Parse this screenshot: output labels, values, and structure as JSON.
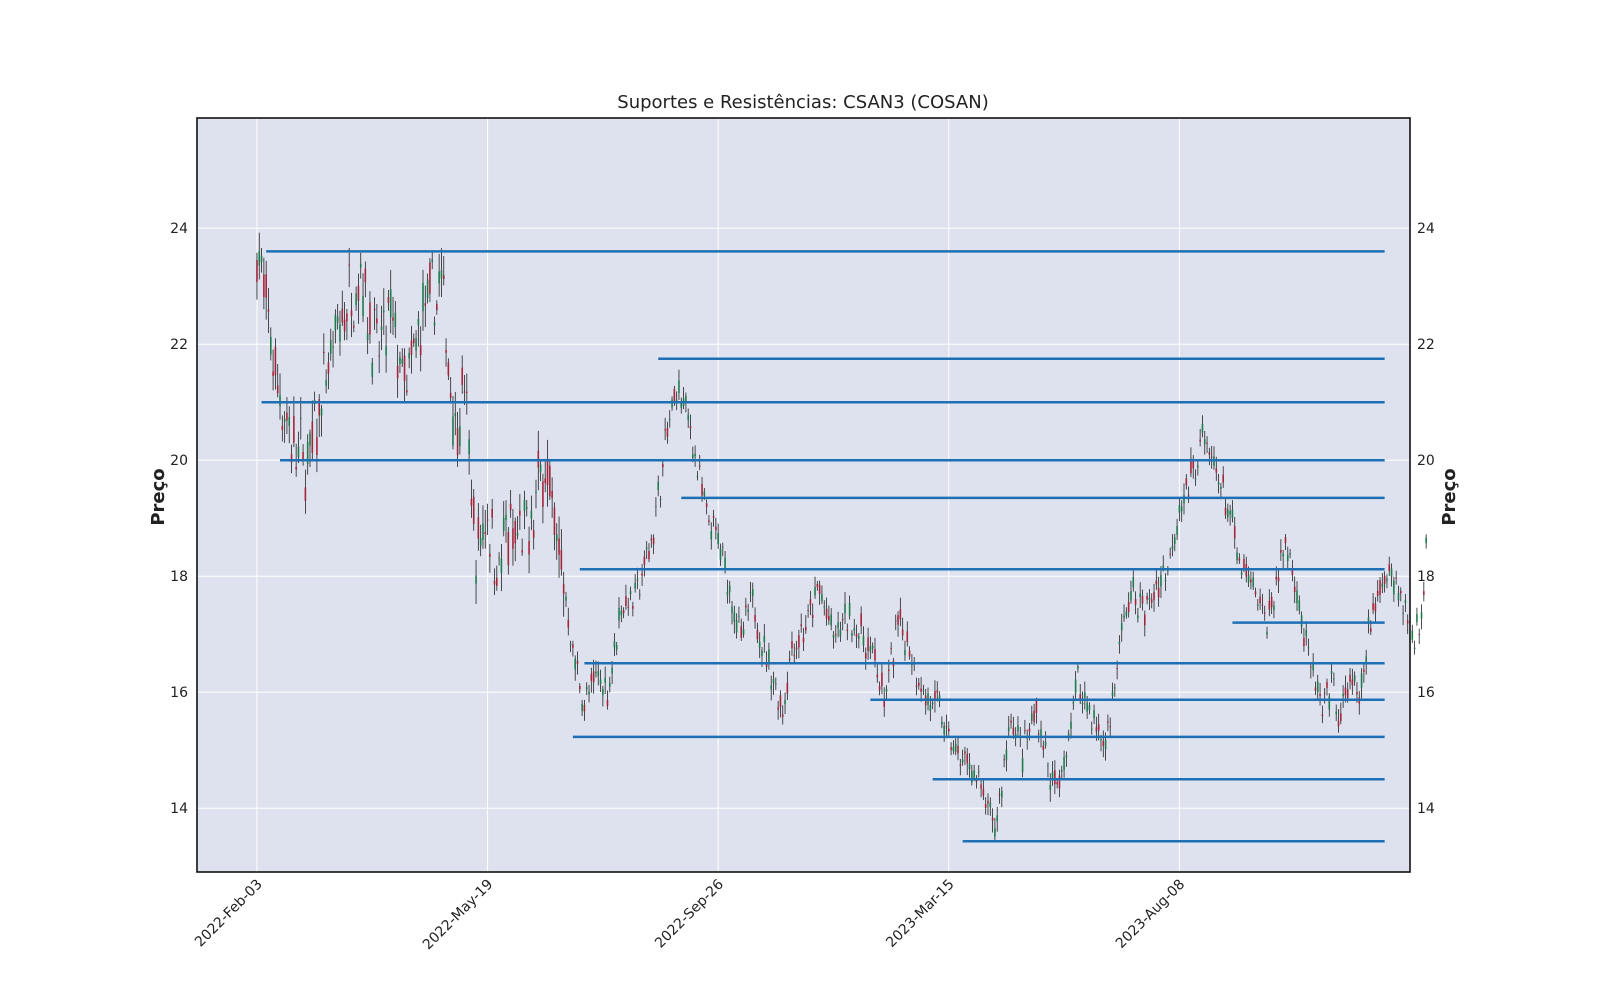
{
  "chart_data": {
    "type": "candlestick",
    "title": "Suportes e Resistências: CSAN3 (COSAN)",
    "ylabel_left": "Preço",
    "ylabel_right": "Preço",
    "x_tick_labels": [
      "2022-Feb-03",
      "2022-May-19",
      "2022-Sep-26",
      "2023-Mar-15",
      "2023-Aug-08"
    ],
    "y_ticks": [
      14,
      16,
      18,
      20,
      22,
      24
    ],
    "ylim": [
      12.9,
      25.9
    ],
    "grid": true,
    "colors": {
      "plot_background": "#dde2ee",
      "grid": "#ffffff",
      "level_line": "#1f6fb4",
      "candle_up": "#1f7a4c",
      "candle_down": "#a3253a",
      "wick": "#222222"
    },
    "price_path": [
      [
        0,
        23.7
      ],
      [
        8,
        21.5
      ],
      [
        15,
        20.3
      ],
      [
        22,
        19.9
      ],
      [
        30,
        21.4
      ],
      [
        38,
        22.6
      ],
      [
        45,
        23.3
      ],
      [
        52,
        21.8
      ],
      [
        58,
        22.4
      ],
      [
        65,
        21.2
      ],
      [
        72,
        22.5
      ],
      [
        80,
        23.0
      ],
      [
        86,
        20.6
      ],
      [
        90,
        21.2
      ],
      [
        95,
        18.3
      ],
      [
        100,
        19.1
      ],
      [
        105,
        18.1
      ],
      [
        108,
        18.7
      ],
      [
        112,
        18.6
      ],
      [
        118,
        18.7
      ],
      [
        125,
        20.1
      ],
      [
        128,
        19.0
      ],
      [
        132,
        18.2
      ],
      [
        137,
        16.7
      ],
      [
        142,
        15.8
      ],
      [
        148,
        16.3
      ],
      [
        152,
        16.0
      ],
      [
        158,
        17.5
      ],
      [
        165,
        17.7
      ],
      [
        172,
        18.8
      ],
      [
        178,
        20.5
      ],
      [
        182,
        21.2
      ],
      [
        186,
        20.9
      ],
      [
        190,
        20.1
      ],
      [
        195,
        19.0
      ],
      [
        200,
        18.6
      ],
      [
        205,
        17.8
      ],
      [
        210,
        16.9
      ],
      [
        215,
        17.6
      ],
      [
        220,
        16.7
      ],
      [
        228,
        15.7
      ],
      [
        232,
        16.8
      ],
      [
        238,
        17.1
      ],
      [
        244,
        17.8
      ],
      [
        250,
        16.9
      ],
      [
        256,
        17.3
      ],
      [
        262,
        17.0
      ],
      [
        268,
        16.6
      ],
      [
        272,
        15.8
      ],
      [
        278,
        17.2
      ],
      [
        282,
        16.9
      ],
      [
        286,
        16.4
      ],
      [
        290,
        15.9
      ],
      [
        296,
        15.7
      ],
      [
        300,
        15.2
      ],
      [
        305,
        14.8
      ],
      [
        310,
        14.7
      ],
      [
        315,
        14.2
      ],
      [
        320,
        13.6
      ],
      [
        323,
        14.4
      ],
      [
        327,
        15.6
      ],
      [
        332,
        14.9
      ],
      [
        338,
        15.7
      ],
      [
        344,
        14.5
      ],
      [
        348,
        14.3
      ],
      [
        352,
        15.3
      ],
      [
        356,
        16.2
      ],
      [
        360,
        15.8
      ],
      [
        364,
        15.4
      ],
      [
        368,
        15.1
      ],
      [
        372,
        16.1
      ],
      [
        376,
        17.3
      ],
      [
        380,
        17.7
      ],
      [
        385,
        17.4
      ],
      [
        390,
        17.8
      ],
      [
        395,
        18.2
      ],
      [
        400,
        19.2
      ],
      [
        405,
        19.7
      ],
      [
        410,
        20.4
      ],
      [
        414,
        20.0
      ],
      [
        418,
        19.6
      ],
      [
        422,
        19.0
      ],
      [
        426,
        18.2
      ],
      [
        430,
        17.9
      ],
      [
        434,
        17.6
      ],
      [
        438,
        17.2
      ],
      [
        442,
        17.9
      ],
      [
        446,
        18.6
      ],
      [
        450,
        18.0
      ],
      [
        454,
        17.0
      ],
      [
        458,
        16.3
      ],
      [
        462,
        15.6
      ],
      [
        466,
        16.1
      ],
      [
        470,
        15.5
      ],
      [
        474,
        16.3
      ],
      [
        478,
        15.7
      ],
      [
        482,
        17.0
      ],
      [
        486,
        17.6
      ],
      [
        490,
        18.2
      ],
      [
        494,
        17.9
      ],
      [
        498,
        17.4
      ],
      [
        502,
        17.0
      ],
      [
        505,
        17.2
      ],
      [
        507,
        18.7
      ]
    ],
    "x_tick_positions": [
      0,
      100,
      200,
      300,
      400
    ],
    "x_range": [
      -26,
      500
    ],
    "levels": [
      {
        "start": 4,
        "value": 23.6
      },
      {
        "start": 174,
        "value": 21.75
      },
      {
        "start": 2,
        "value": 21.0
      },
      {
        "start": 10,
        "value": 20.0
      },
      {
        "start": 184,
        "value": 19.35
      },
      {
        "start": 140,
        "value": 18.12
      },
      {
        "start": 142,
        "value": 16.5
      },
      {
        "start": 266,
        "value": 15.87
      },
      {
        "start": 137,
        "value": 15.23
      },
      {
        "start": 293,
        "value": 14.5
      },
      {
        "start": 306,
        "value": 13.43
      },
      {
        "start": 423,
        "value": 17.2
      }
    ],
    "level_end": 489
  }
}
